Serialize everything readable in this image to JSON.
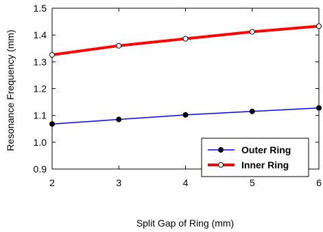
{
  "chart_data": {
    "type": "line",
    "title": "",
    "xlabel": "Split Gap of Ring (mm)",
    "ylabel": "Resonance Frequency (mm)",
    "xlim": [
      2,
      6
    ],
    "ylim": [
      0.9,
      1.5
    ],
    "x_ticks": [
      "2",
      "3",
      "4",
      "5",
      "6"
    ],
    "y_ticks": [
      "0.9",
      "1.0",
      "1.1",
      "1.2",
      "1.3",
      "1.4",
      "1.5"
    ],
    "grid": false,
    "legend_position": "bottom-right",
    "x": [
      2,
      3,
      4,
      5,
      6
    ],
    "series": [
      {
        "name": "Outer Ring",
        "values": [
          1.068,
          1.085,
          1.102,
          1.115,
          1.128
        ],
        "color": "#0000ff",
        "marker": "filled-circle"
      },
      {
        "name": "Inner Ring",
        "values": [
          1.326,
          1.36,
          1.386,
          1.412,
          1.433
        ],
        "color": "#ff0000",
        "marker": "open-circle"
      }
    ]
  }
}
